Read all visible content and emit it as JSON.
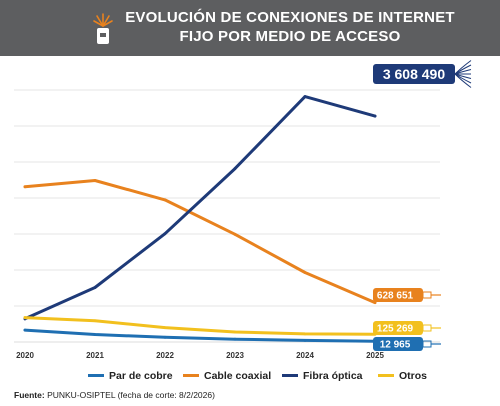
{
  "header": {
    "title_line1": "EVOLUCIÓN DE CONEXIONES DE INTERNET",
    "title_line2": "FIJO POR MEDIO DE ACCESO",
    "icon": "fiber-optic-connector-icon"
  },
  "colors": {
    "header_bg": "#5d5e60",
    "par_de_cobre": "#1f6fb2",
    "cable_coaxial": "#e8821e",
    "fibra_optica": "#1e3a78",
    "otros": "#f2c01e",
    "grid": "#dcdcdc"
  },
  "chart_data": {
    "type": "line",
    "x": [
      "2020",
      "2021",
      "2022",
      "2023",
      "2024",
      "2025"
    ],
    "series": [
      {
        "name": "Par de cobre",
        "values": [
          190000,
          120000,
          75000,
          45000,
          25000,
          12965
        ]
      },
      {
        "name": "Cable coaxial",
        "values": [
          2480000,
          2580000,
          2270000,
          1720000,
          1110000,
          628651
        ]
      },
      {
        "name": "Fibra óptica",
        "values": [
          370000,
          870000,
          1730000,
          2770000,
          3920000,
          3608490
        ]
      },
      {
        "name": "Otros",
        "values": [
          390000,
          340000,
          230000,
          160000,
          130000,
          125269
        ]
      }
    ],
    "end_labels": [
      "12 965",
      "628 651",
      "3 608 490",
      "125 269"
    ],
    "ylim": [
      0,
      4600000
    ],
    "grid": true,
    "legend_position": "bottom"
  },
  "legend": {
    "items": [
      "Par de cobre",
      "Cable coaxial",
      "Fibra óptica",
      "Otros"
    ]
  },
  "source": {
    "label": "Fuente:",
    "text": " PUNKU-OSIPTEL (fecha de corte: 8/2/2026)"
  }
}
